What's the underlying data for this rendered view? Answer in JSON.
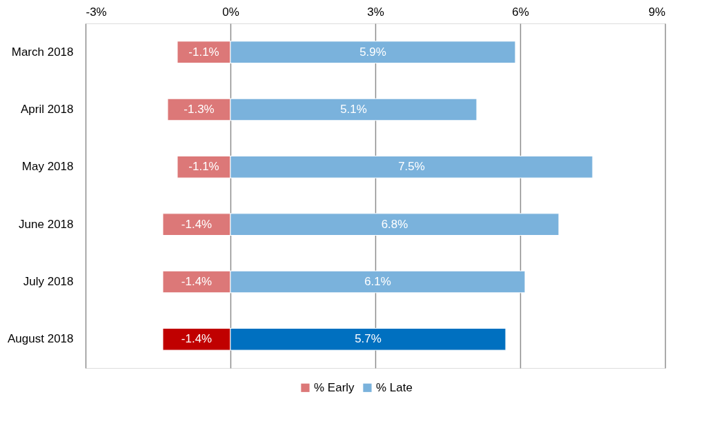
{
  "chart_data": {
    "type": "bar",
    "orientation": "horizontal",
    "stacked": true,
    "categories": [
      "March 2018",
      "April 2018",
      "May 2018",
      "June 2018",
      "July 2018",
      "August 2018"
    ],
    "series": [
      {
        "name": "% Early",
        "color": "#dc7878",
        "colors": [
          "#dc7878",
          "#dc7878",
          "#dc7878",
          "#dc7878",
          "#dc7878",
          "#c00000"
        ],
        "values": [
          -1.1,
          -1.3,
          -1.1,
          -1.4,
          -1.4,
          -1.4
        ],
        "value_labels": [
          "-1.1%",
          "-1.3%",
          "-1.1%",
          "-1.4%",
          "-1.4%",
          "-1.4%"
        ]
      },
      {
        "name": "% Late",
        "color": "#7ab2dc",
        "colors": [
          "#7ab2dc",
          "#7ab2dc",
          "#7ab2dc",
          "#7ab2dc",
          "#7ab2dc",
          "#0070c0"
        ],
        "values": [
          5.9,
          5.1,
          7.5,
          6.8,
          6.1,
          5.7
        ],
        "value_labels": [
          "5.9%",
          "5.1%",
          "7.5%",
          "6.8%",
          "6.1%",
          "5.7%"
        ]
      }
    ],
    "xlim": [
      -3,
      9
    ],
    "xticks": [
      {
        "value": -3,
        "label": "-3%"
      },
      {
        "value": 0,
        "label": "0%"
      },
      {
        "value": 3,
        "label": "3%"
      },
      {
        "value": 6,
        "label": "6%"
      },
      {
        "value": 9,
        "label": "9%"
      }
    ],
    "grid": "x",
    "legend": "bottom"
  }
}
